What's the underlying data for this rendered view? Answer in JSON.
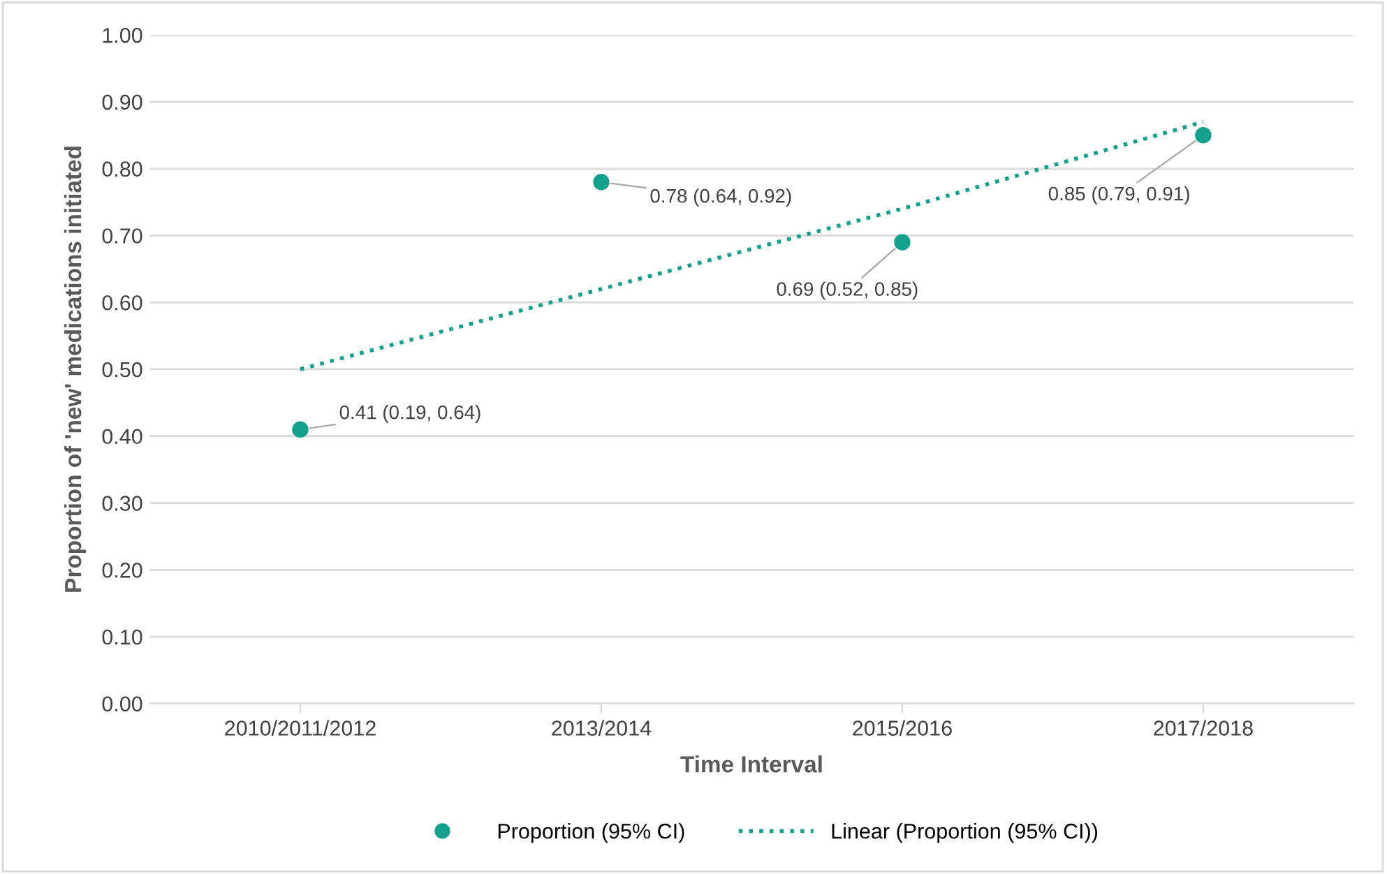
{
  "chart_data": {
    "type": "scatter",
    "xlabel": "Time Interval",
    "ylabel": "Proportion of 'new' medications initiated",
    "categories": [
      "2010/2011/2012",
      "2013/2014",
      "2015/2016",
      "2017/2018"
    ],
    "series": [
      {
        "name": "Proportion (95% CI)",
        "color": "#13a08c",
        "values": [
          0.41,
          0.78,
          0.69,
          0.85
        ],
        "value_labels": [
          "0.41 (0.19, 0.64)",
          "0.78 (0.64, 0.92)",
          "0.69 (0.52, 0.85)",
          "0.85 (0.79, 0.91)"
        ],
        "marker": "circle"
      },
      {
        "name": "Linear (Proportion (95% CI))",
        "type": "line",
        "color": "#13a08c",
        "values": [
          0.5,
          0.62,
          0.74,
          0.87
        ],
        "line_style": "dotted",
        "marker": "none"
      }
    ],
    "ylim": [
      0,
      1
    ],
    "yticks": [
      {
        "value": 0,
        "label": "0.00"
      },
      {
        "value": 0.1,
        "label": "0.10"
      },
      {
        "value": 0.2,
        "label": "0.20"
      },
      {
        "value": 0.3,
        "label": "0.30"
      },
      {
        "value": 0.4,
        "label": "0.40"
      },
      {
        "value": 0.5,
        "label": "0.50"
      },
      {
        "value": 0.6,
        "label": "0.60"
      },
      {
        "value": 0.7,
        "label": "0.70"
      },
      {
        "value": 0.8,
        "label": "0.80"
      },
      {
        "value": 0.9,
        "label": "0.90"
      },
      {
        "value": 1,
        "label": "1.00"
      }
    ],
    "grid": "y",
    "legend": "bottom"
  }
}
